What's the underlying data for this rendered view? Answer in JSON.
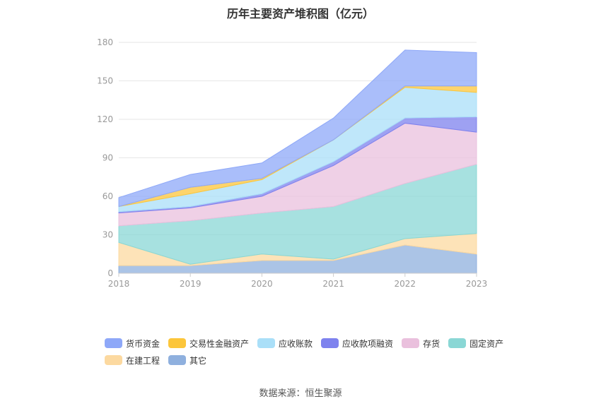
{
  "title": "历年主要资产堆积图（亿元）",
  "source": "数据来源：恒生聚源",
  "chart_data": {
    "type": "area",
    "stacked": true,
    "x": [
      "2018",
      "2019",
      "2020",
      "2021",
      "2022",
      "2023"
    ],
    "ylim": [
      0,
      180
    ],
    "yticks": [
      0,
      30,
      60,
      90,
      120,
      150,
      180
    ],
    "grid": true,
    "legend_position": "bottom",
    "series": [
      {
        "name": "其它",
        "color": "#8fb0de",
        "values": [
          6,
          6,
          10,
          10,
          22,
          15
        ]
      },
      {
        "name": "在建工程",
        "color": "#fcd9a0",
        "values": [
          18,
          1,
          5,
          1,
          5,
          16
        ]
      },
      {
        "name": "固定资产",
        "color": "#8ad7d5",
        "values": [
          13,
          34,
          32,
          41,
          43,
          54
        ]
      },
      {
        "name": "存货",
        "color": "#eac0dd",
        "values": [
          10,
          10,
          13,
          32,
          47,
          25
        ]
      },
      {
        "name": "应收款项融资",
        "color": "#7e82ee",
        "values": [
          1,
          1,
          2,
          3,
          4,
          12
        ]
      },
      {
        "name": "应收账款",
        "color": "#aadff8",
        "values": [
          4,
          10,
          11,
          17,
          24,
          19
        ]
      },
      {
        "name": "交易性金融资产",
        "color": "#fcc63b",
        "values": [
          0,
          5,
          1,
          0,
          1,
          5
        ]
      },
      {
        "name": "货币资金",
        "color": "#8ea8f8",
        "values": [
          7,
          10,
          12,
          17,
          28,
          26
        ]
      }
    ],
    "legend_order": [
      "货币资金",
      "交易性金融资产",
      "应收账款",
      "应收款项融资",
      "存货",
      "固定资产",
      "在建工程",
      "其它"
    ]
  }
}
